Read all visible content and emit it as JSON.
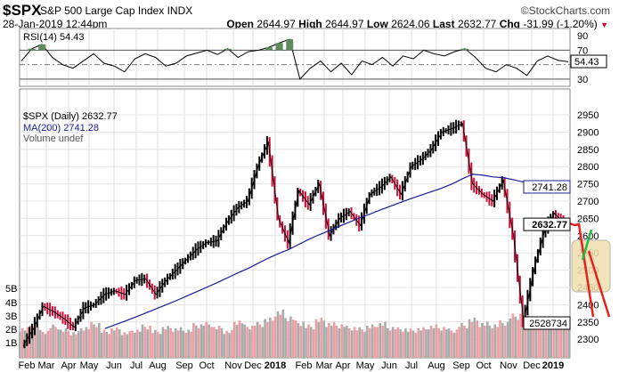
{
  "header": {
    "symbol": "$SPX",
    "name": "S&P 500 Large Cap Index",
    "exchange": "INDX",
    "brand": "©StockCharts.com",
    "datetime": "28-Jan-2019 12:44pm",
    "open_label": "Open",
    "open": "2644.97",
    "high_label": "High",
    "high": "2644.97",
    "low_label": "Low",
    "low": "2624.06",
    "last_label": "Last",
    "last": "2632.77",
    "chg_label": "Chg",
    "chg": "-31.99 (-1.20%)",
    "chg_icon": "down-triangle-icon",
    "chg_color": "#cc0033"
  },
  "chart_data": [
    {
      "type": "line",
      "title": "RSI(14) 54.43",
      "legend": "RSI(14) 54.43",
      "ylim": [
        20,
        100
      ],
      "yticks": [
        "90",
        "70",
        "30"
      ],
      "levels": [
        70,
        50,
        30
      ],
      "last_label": "54.43",
      "values": [
        55,
        72,
        78,
        60,
        50,
        45,
        55,
        65,
        52,
        48,
        40,
        58,
        65,
        60,
        48,
        52,
        62,
        66,
        70,
        64,
        72,
        60,
        68,
        70,
        74,
        80,
        85,
        30,
        45,
        55,
        40,
        52,
        36,
        55,
        50,
        60,
        48,
        62,
        58,
        70,
        65,
        62,
        68,
        72,
        60,
        45,
        40,
        50,
        45,
        35,
        55,
        62,
        56,
        54
      ]
    },
    {
      "type": "line",
      "title": "$SPX (Daily) 2632.77",
      "legend": [
        "$SPX (Daily) 2632.77",
        "MA(200) 2741.28",
        "Volume undef"
      ],
      "ylim": [
        2260,
        2990
      ],
      "yticks": [
        "2950",
        "2900",
        "2850",
        "2800",
        "2750",
        "2700",
        "2650",
        "2600",
        "2550",
        "2500",
        "2450",
        "2400",
        "2350",
        "2300"
      ],
      "xticks": [
        "Feb",
        "Mar",
        "Apr",
        "May",
        "Jun",
        "Jul",
        "Aug",
        "Sep",
        "Oct",
        "Nov",
        "Dec",
        "2018",
        "Feb",
        "Mar",
        "Apr",
        "May",
        "Jun",
        "Jul",
        "Aug",
        "Sep",
        "Oct",
        "Nov",
        "Dec",
        "2019"
      ],
      "close": [
        2280,
        2330,
        2395,
        2380,
        2360,
        2335,
        2390,
        2400,
        2430,
        2440,
        2430,
        2470,
        2475,
        2430,
        2470,
        2500,
        2530,
        2560,
        2580,
        2585,
        2640,
        2680,
        2700,
        2800,
        2870,
        2650,
        2580,
        2730,
        2690,
        2750,
        2600,
        2650,
        2670,
        2630,
        2720,
        2740,
        2770,
        2720,
        2800,
        2820,
        2850,
        2900,
        2910,
        2925,
        2750,
        2720,
        2700,
        2760,
        2600,
        2350,
        2500,
        2610,
        2665,
        2632.77
      ],
      "ma200": [
        2255,
        2263,
        2272,
        2281,
        2290,
        2300,
        2310,
        2320,
        2331,
        2342,
        2353,
        2364,
        2376,
        2388,
        2400,
        2412,
        2425,
        2438,
        2451,
        2464,
        2478,
        2492,
        2505,
        2520,
        2535,
        2548,
        2560,
        2575,
        2590,
        2603,
        2615,
        2628,
        2640,
        2652,
        2663,
        2675,
        2686,
        2697,
        2708,
        2718,
        2728,
        2738,
        2750,
        2765,
        2778,
        2775,
        2770,
        2768,
        2762,
        2755,
        2748,
        2743,
        2741,
        2741.28
      ],
      "ma_last_label": "2741.28",
      "price_last_label": "2632.77",
      "volume_yticks": [
        "5B",
        "4B",
        "3B",
        "2B",
        "1B"
      ],
      "volume_billions": [
        2.2,
        2.5,
        2.0,
        2.4,
        2.1,
        1.9,
        2.3,
        2.6,
        2.0,
        2.2,
        1.9,
        2.1,
        2.4,
        2.0,
        2.3,
        2.2,
        2.1,
        2.5,
        2.6,
        2.3,
        2.0,
        2.8,
        2.4,
        2.6,
        2.9,
        3.5,
        3.1,
        2.7,
        2.4,
        2.9,
        2.6,
        2.5,
        2.3,
        2.2,
        2.4,
        2.6,
        2.3,
        2.2,
        2.1,
        2.2,
        2.4,
        2.3,
        2.1,
        2.5,
        2.9,
        2.6,
        2.5,
        2.7,
        3.2,
        3.3,
        2.8,
        2.6,
        2.5,
        2.4
      ],
      "volume_last_label": "2528734"
    }
  ]
}
